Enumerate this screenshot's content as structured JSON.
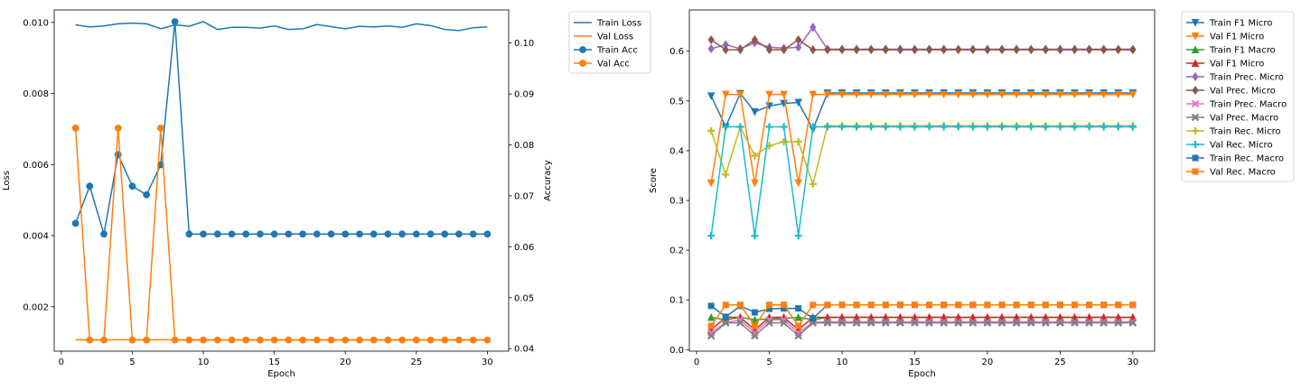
{
  "chart_data": [
    {
      "type": "line",
      "xlabel": "Epoch",
      "ylabel": "Loss",
      "y2label": "Accuracy",
      "xlim": [
        -0.5,
        31.5
      ],
      "ylim": [
        0.00075,
        0.01035
      ],
      "y2lim": [
        0.0395,
        0.1065
      ],
      "xticks": [
        0,
        5,
        10,
        15,
        20,
        25,
        30
      ],
      "yticks": [
        0.002,
        0.004,
        0.006,
        0.008,
        0.01
      ],
      "ytick_labels": [
        "0.002",
        "0.004",
        "0.006",
        "0.008",
        "0.010"
      ],
      "y2ticks": [
        0.04,
        0.05,
        0.06,
        0.07,
        0.08,
        0.09,
        0.1
      ],
      "y2tick_labels": [
        "0.04",
        "0.05",
        "0.06",
        "0.07",
        "0.08",
        "0.09",
        "0.10"
      ],
      "legend_position": "outside-right",
      "x": [
        1,
        2,
        3,
        4,
        5,
        6,
        7,
        8,
        9,
        10,
        11,
        12,
        13,
        14,
        15,
        16,
        17,
        18,
        19,
        20,
        21,
        22,
        23,
        24,
        25,
        26,
        27,
        28,
        29,
        30
      ],
      "series": [
        {
          "name": "Train Loss",
          "axis": "left",
          "color": "#1f77b4",
          "marker": "none",
          "values": [
            0.00993,
            0.00987,
            0.0099,
            0.00996,
            0.00998,
            0.00996,
            0.00982,
            0.00993,
            0.00989,
            0.01002,
            0.0098,
            0.00986,
            0.00986,
            0.00984,
            0.0099,
            0.0098,
            0.00982,
            0.00994,
            0.00988,
            0.00982,
            0.00989,
            0.00987,
            0.0099,
            0.00986,
            0.00996,
            0.00991,
            0.0098,
            0.00977,
            0.00985,
            0.00987
          ]
        },
        {
          "name": "Val Loss",
          "axis": "left",
          "color": "#ff7f0e",
          "marker": "none",
          "values": [
            0.00107,
            0.00107,
            0.00107,
            0.00107,
            0.00107,
            0.00107,
            0.00107,
            0.00107,
            0.00107,
            0.00107,
            0.00107,
            0.00107,
            0.00107,
            0.00107,
            0.00107,
            0.00107,
            0.00107,
            0.00107,
            0.00107,
            0.00107,
            0.00107,
            0.00107,
            0.00107,
            0.00107,
            0.00107,
            0.00107,
            0.00107,
            0.00107,
            0.00107,
            0.00107
          ]
        },
        {
          "name": "Train Acc",
          "axis": "right",
          "color": "#1f77b4",
          "marker": "circle",
          "values": [
            0.0646,
            0.0719,
            0.0625,
            0.0781,
            0.0719,
            0.0702,
            0.0761,
            0.1042,
            0.0625,
            0.0625,
            0.0625,
            0.0625,
            0.0625,
            0.0625,
            0.0625,
            0.0625,
            0.0625,
            0.0625,
            0.0625,
            0.0625,
            0.0625,
            0.0625,
            0.0625,
            0.0625,
            0.0625,
            0.0625,
            0.0625,
            0.0625,
            0.0625,
            0.0625
          ]
        },
        {
          "name": "Val Acc",
          "axis": "right",
          "color": "#ff7f0e",
          "marker": "circle",
          "values": [
            0.0833,
            0.0417,
            0.0417,
            0.0833,
            0.0417,
            0.0417,
            0.0833,
            0.0417,
            0.0417,
            0.0417,
            0.0417,
            0.0417,
            0.0417,
            0.0417,
            0.0417,
            0.0417,
            0.0417,
            0.0417,
            0.0417,
            0.0417,
            0.0417,
            0.0417,
            0.0417,
            0.0417,
            0.0417,
            0.0417,
            0.0417,
            0.0417,
            0.0417,
            0.0417
          ]
        }
      ]
    },
    {
      "type": "line",
      "xlabel": "Epoch",
      "ylabel": "Score",
      "xlim": [
        -0.5,
        31.5
      ],
      "ylim": [
        -0.003,
        0.683
      ],
      "xticks": [
        0,
        5,
        10,
        15,
        20,
        25,
        30
      ],
      "yticks": [
        0.0,
        0.1,
        0.2,
        0.3,
        0.4,
        0.5,
        0.6
      ],
      "ytick_labels": [
        "0.0",
        "0.1",
        "0.2",
        "0.3",
        "0.4",
        "0.5",
        "0.6"
      ],
      "legend_position": "outside-right",
      "x": [
        1,
        2,
        3,
        4,
        5,
        6,
        7,
        8,
        9,
        10,
        11,
        12,
        13,
        14,
        15,
        16,
        17,
        18,
        19,
        20,
        21,
        22,
        23,
        24,
        25,
        26,
        27,
        28,
        29,
        30
      ],
      "series": [
        {
          "name": "Train F1 Micro",
          "color": "#1f77b4",
          "marker": "tri_down",
          "values": [
            0.51,
            0.448,
            0.515,
            0.478,
            0.49,
            0.495,
            0.497,
            0.443,
            0.516,
            0.516,
            0.516,
            0.516,
            0.516,
            0.516,
            0.516,
            0.516,
            0.516,
            0.516,
            0.516,
            0.516,
            0.516,
            0.516,
            0.516,
            0.516,
            0.516,
            0.516,
            0.516,
            0.516,
            0.516,
            0.516
          ]
        },
        {
          "name": "Val F1 Micro",
          "color": "#ff7f0e",
          "marker": "tri_down",
          "values": [
            0.335,
            0.513,
            0.513,
            0.335,
            0.513,
            0.513,
            0.335,
            0.513,
            0.513,
            0.513,
            0.513,
            0.513,
            0.513,
            0.513,
            0.513,
            0.513,
            0.513,
            0.513,
            0.513,
            0.513,
            0.513,
            0.513,
            0.513,
            0.513,
            0.513,
            0.513,
            0.513,
            0.513,
            0.513,
            0.513
          ]
        },
        {
          "name": "Train F1 Macro",
          "color": "#2ca02c",
          "marker": "tri_up",
          "values": [
            0.065,
            0.06,
            0.065,
            0.06,
            0.062,
            0.063,
            0.065,
            0.06,
            0.065,
            0.065,
            0.065,
            0.065,
            0.065,
            0.065,
            0.065,
            0.065,
            0.065,
            0.065,
            0.065,
            0.065,
            0.065,
            0.065,
            0.065,
            0.065,
            0.065,
            0.065,
            0.065,
            0.065,
            0.065,
            0.065
          ]
        },
        {
          "name": "Val F1 Micro",
          "color": "#d62728",
          "marker": "tri_up",
          "values": [
            0.04,
            0.065,
            0.065,
            0.04,
            0.065,
            0.065,
            0.04,
            0.065,
            0.065,
            0.065,
            0.065,
            0.065,
            0.065,
            0.065,
            0.065,
            0.065,
            0.065,
            0.065,
            0.065,
            0.065,
            0.065,
            0.065,
            0.065,
            0.065,
            0.065,
            0.065,
            0.065,
            0.065,
            0.065,
            0.065
          ]
        },
        {
          "name": "Train Prec. Micro",
          "color": "#9467bd",
          "marker": "diamond",
          "values": [
            0.605,
            0.613,
            0.605,
            0.617,
            0.608,
            0.606,
            0.608,
            0.648,
            0.604,
            0.604,
            0.604,
            0.604,
            0.604,
            0.604,
            0.604,
            0.604,
            0.604,
            0.604,
            0.604,
            0.604,
            0.604,
            0.604,
            0.604,
            0.604,
            0.604,
            0.604,
            0.604,
            0.604,
            0.604,
            0.604
          ]
        },
        {
          "name": "Val Prec. Micro",
          "color": "#8c564b",
          "marker": "diamond",
          "values": [
            0.623,
            0.603,
            0.603,
            0.623,
            0.603,
            0.603,
            0.623,
            0.603,
            0.603,
            0.603,
            0.603,
            0.603,
            0.603,
            0.603,
            0.603,
            0.603,
            0.603,
            0.603,
            0.603,
            0.603,
            0.603,
            0.603,
            0.603,
            0.603,
            0.603,
            0.603,
            0.603,
            0.603,
            0.603,
            0.603
          ]
        },
        {
          "name": "Train Prec. Macro",
          "color": "#e377c2",
          "marker": "x",
          "values": [
            0.034,
            0.054,
            0.06,
            0.034,
            0.06,
            0.06,
            0.034,
            0.055,
            0.056,
            0.056,
            0.056,
            0.056,
            0.056,
            0.056,
            0.056,
            0.056,
            0.056,
            0.056,
            0.056,
            0.056,
            0.056,
            0.056,
            0.056,
            0.056,
            0.056,
            0.056,
            0.056,
            0.056,
            0.056,
            0.056
          ]
        },
        {
          "name": "Val Prec. Macro",
          "color": "#7f7f7f",
          "marker": "x",
          "values": [
            0.028,
            0.054,
            0.054,
            0.028,
            0.054,
            0.054,
            0.028,
            0.054,
            0.054,
            0.054,
            0.054,
            0.054,
            0.054,
            0.054,
            0.054,
            0.054,
            0.054,
            0.054,
            0.054,
            0.054,
            0.054,
            0.054,
            0.054,
            0.054,
            0.054,
            0.054,
            0.054,
            0.054,
            0.054,
            0.054
          ]
        },
        {
          "name": "Train Rec. Micro",
          "color": "#bcbd22",
          "marker": "plus",
          "values": [
            0.44,
            0.352,
            0.448,
            0.39,
            0.41,
            0.418,
            0.418,
            0.333,
            0.45,
            0.45,
            0.45,
            0.45,
            0.45,
            0.45,
            0.45,
            0.45,
            0.45,
            0.45,
            0.45,
            0.45,
            0.45,
            0.45,
            0.45,
            0.45,
            0.45,
            0.45,
            0.45,
            0.45,
            0.45,
            0.45
          ]
        },
        {
          "name": "Val Rec. Micro",
          "color": "#17becf",
          "marker": "plus",
          "values": [
            0.229,
            0.448,
            0.448,
            0.229,
            0.448,
            0.448,
            0.229,
            0.448,
            0.448,
            0.448,
            0.448,
            0.448,
            0.448,
            0.448,
            0.448,
            0.448,
            0.448,
            0.448,
            0.448,
            0.448,
            0.448,
            0.448,
            0.448,
            0.448,
            0.448,
            0.448,
            0.448,
            0.448,
            0.448,
            0.448
          ]
        },
        {
          "name": "Train Rec. Macro",
          "color": "#1f77b4",
          "marker": "square",
          "values": [
            0.088,
            0.066,
            0.088,
            0.075,
            0.082,
            0.083,
            0.083,
            0.063,
            0.09,
            0.09,
            0.09,
            0.09,
            0.09,
            0.09,
            0.09,
            0.09,
            0.09,
            0.09,
            0.09,
            0.09,
            0.09,
            0.09,
            0.09,
            0.09,
            0.09,
            0.09,
            0.09,
            0.09,
            0.09,
            0.09
          ]
        },
        {
          "name": "Val Rec. Macro",
          "color": "#ff7f0e",
          "marker": "square",
          "values": [
            0.048,
            0.09,
            0.09,
            0.048,
            0.09,
            0.09,
            0.048,
            0.09,
            0.09,
            0.09,
            0.09,
            0.09,
            0.09,
            0.09,
            0.09,
            0.09,
            0.09,
            0.09,
            0.09,
            0.09,
            0.09,
            0.09,
            0.09,
            0.09,
            0.09,
            0.09,
            0.09,
            0.09,
            0.09,
            0.09
          ]
        }
      ]
    }
  ]
}
